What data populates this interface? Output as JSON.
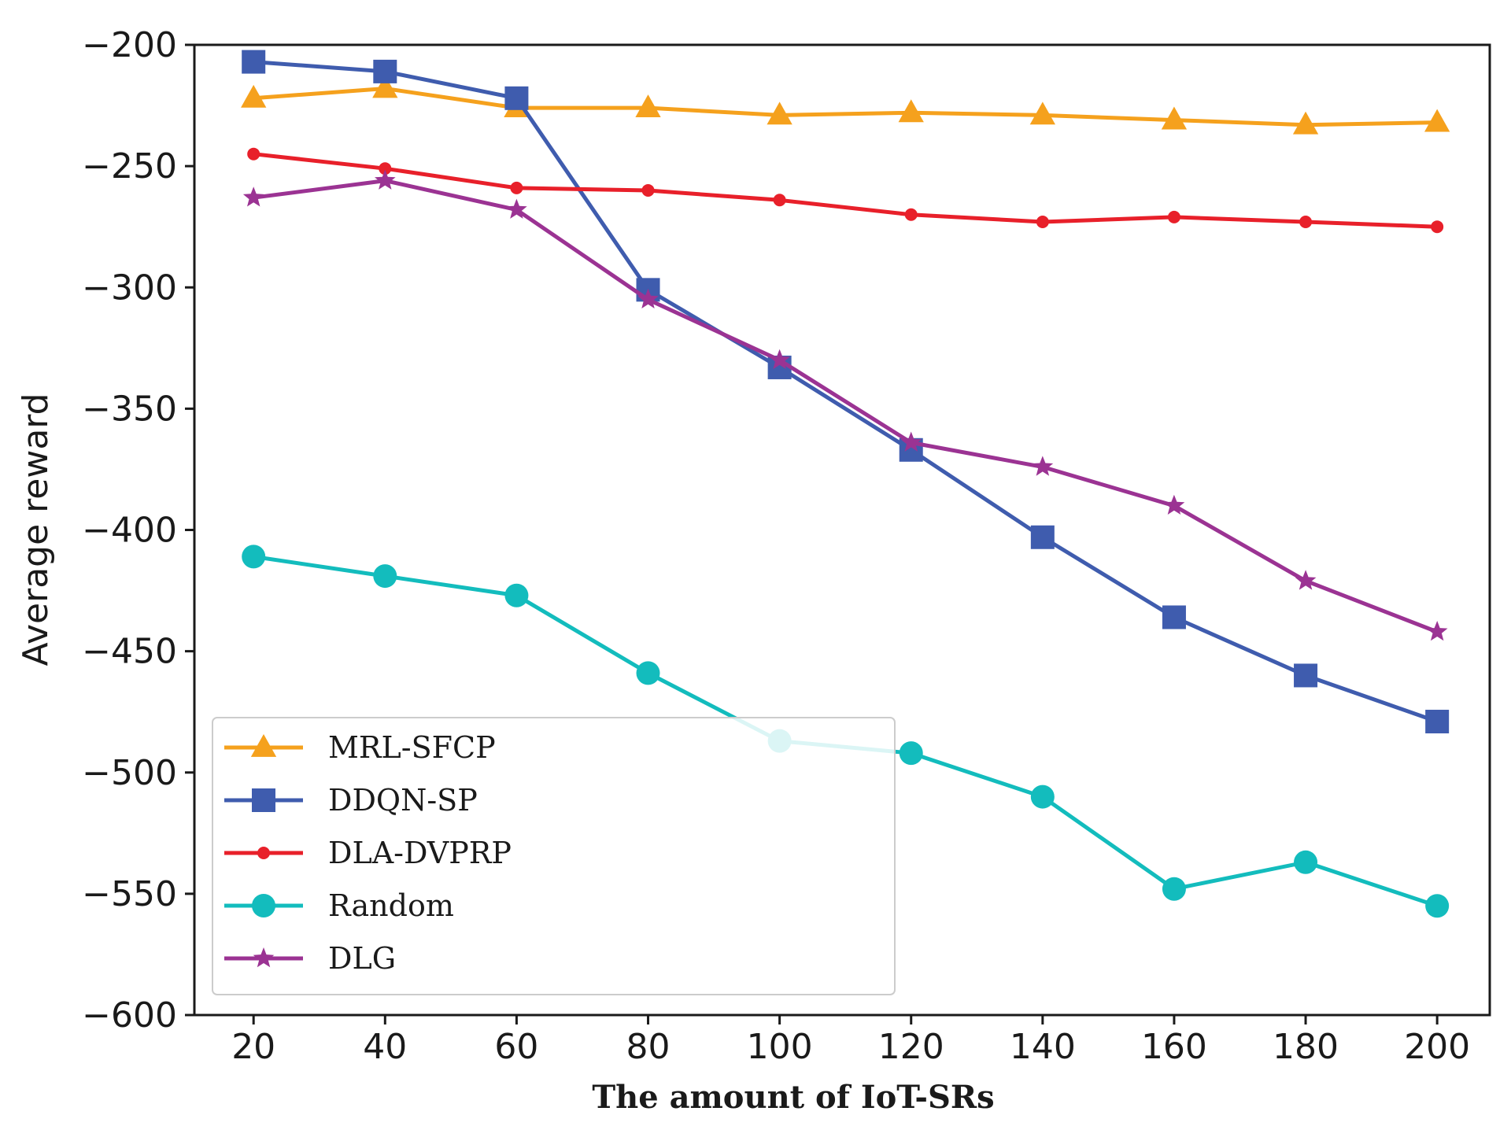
{
  "chart_data": {
    "type": "line",
    "title": "",
    "xlabel": "The amount of IoT-SRs",
    "ylabel": "Average reward",
    "x": [
      20,
      40,
      60,
      80,
      100,
      120,
      140,
      160,
      180,
      200
    ],
    "xticks": [
      "20",
      "40",
      "60",
      "80",
      "100",
      "120",
      "140",
      "160",
      "180",
      "200"
    ],
    "yticks": [
      "−200",
      "−250",
      "−300",
      "−350",
      "−400",
      "−450",
      "−500",
      "−550",
      "−600"
    ],
    "ytick_values": [
      -200,
      -250,
      -300,
      -350,
      -400,
      -450,
      -500,
      -550,
      -600
    ],
    "xlim": [
      11,
      208
    ],
    "ylim": [
      -600,
      -200
    ],
    "grid": false,
    "legend_position": "lower-left",
    "series": [
      {
        "name": "MRL-SFCP",
        "color": "#f5a11d",
        "marker": "triangle",
        "values": [
          -222,
          -218,
          -226,
          -226,
          -229,
          -228,
          -229,
          -231,
          -233,
          -232
        ]
      },
      {
        "name": "DDQN-SP",
        "color": "#3f5cae",
        "marker": "square",
        "values": [
          -207,
          -211,
          -222,
          -301,
          -333,
          -367,
          -403,
          -436,
          -460,
          -479
        ]
      },
      {
        "name": "DLA-DVPRP",
        "color": "#e8202a",
        "marker": "circle-small",
        "values": [
          -245,
          -251,
          -259,
          -260,
          -264,
          -270,
          -273,
          -271,
          -273,
          -275
        ]
      },
      {
        "name": "Random",
        "color": "#13bcbd",
        "marker": "circle",
        "values": [
          -411,
          -419,
          -427,
          -459,
          -487,
          -492,
          -510,
          -548,
          -537,
          -555
        ]
      },
      {
        "name": "DLG",
        "color": "#9b3393",
        "marker": "star",
        "values": [
          -263,
          -256,
          -268,
          -305,
          -330,
          -364,
          -374,
          -390,
          -421,
          -442
        ]
      }
    ]
  }
}
